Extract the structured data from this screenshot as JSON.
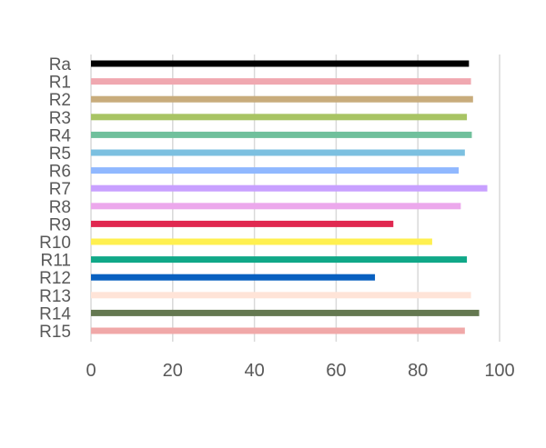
{
  "chart_data": {
    "type": "bar",
    "orientation": "horizontal",
    "title": "",
    "xlabel": "",
    "ylabel": "",
    "xlim": [
      0,
      100
    ],
    "x_ticks": [
      0,
      20,
      40,
      60,
      80,
      100
    ],
    "grid": "vertical",
    "legend": "none",
    "categories": [
      "Ra",
      "R1",
      "R2",
      "R3",
      "R4",
      "R5",
      "R6",
      "R7",
      "R8",
      "R9",
      "R10",
      "R11",
      "R12",
      "R13",
      "R14",
      "R15"
    ],
    "values": [
      92.5,
      93,
      93.5,
      92,
      93.2,
      91.5,
      90,
      97,
      90.5,
      74,
      83.5,
      92,
      69.5,
      93,
      95,
      91.5
    ],
    "colors": [
      "#000000",
      "#f0a8b0",
      "#c8ac7c",
      "#a8c464",
      "#70c09c",
      "#7cc0e0",
      "#90b8ff",
      "#c8a0ff",
      "#eca8ec",
      "#e02850",
      "#fff050",
      "#10a888",
      "#0860c0",
      "#ffe4d8",
      "#647850",
      "#f0a8a8"
    ]
  }
}
